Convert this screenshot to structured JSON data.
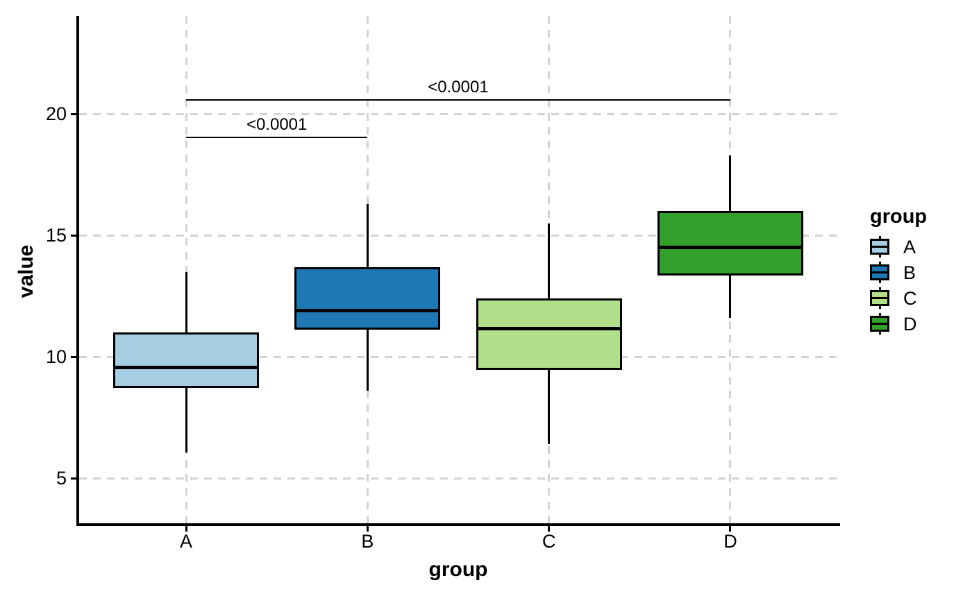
{
  "figure": {
    "background": "#FFFFFF"
  },
  "chart_data": {
    "type": "boxplot",
    "title": "",
    "xlabel": "group",
    "ylabel": "value",
    "categories": [
      "A",
      "B",
      "C",
      "D"
    ],
    "y_ticks": [
      "5",
      "10",
      "15",
      "20"
    ],
    "y_tick_values": [
      5,
      10,
      15,
      20
    ],
    "ylim": [
      3.1,
      24.0
    ],
    "grid": "dashed-both-axes",
    "legend_position": "right",
    "series": [
      {
        "group": "A",
        "color": "#A6CEE3",
        "whisker_low": 6.05,
        "q1": 8.75,
        "median": 9.55,
        "q3": 10.95,
        "whisker_high": 13.5
      },
      {
        "group": "B",
        "color": "#1F78B4",
        "whisker_low": 8.6,
        "q1": 11.15,
        "median": 11.9,
        "q3": 13.65,
        "whisker_high": 16.3
      },
      {
        "group": "C",
        "color": "#B2DF8A",
        "whisker_low": 6.4,
        "q1": 9.5,
        "median": 11.15,
        "q3": 12.35,
        "whisker_high": 15.5
      },
      {
        "group": "D",
        "color": "#33A02C",
        "whisker_low": 11.6,
        "q1": 13.4,
        "median": 14.5,
        "q3": 15.95,
        "whisker_high": 18.3
      }
    ],
    "annotations": [
      {
        "label": "<0.0001",
        "from": "A",
        "to": "B",
        "y_value": 19.05
      },
      {
        "label": "<0.0001",
        "from": "A",
        "to": "D",
        "y_value": 20.6
      }
    ],
    "legend": {
      "title": "group",
      "entries": [
        {
          "label": "A",
          "color": "#A6CEE3"
        },
        {
          "label": "B",
          "color": "#1F78B4"
        },
        {
          "label": "C",
          "color": "#B2DF8A"
        },
        {
          "label": "D",
          "color": "#33A02C"
        }
      ]
    },
    "line_color": "#000000",
    "grid_color": "#D3D3D3"
  }
}
